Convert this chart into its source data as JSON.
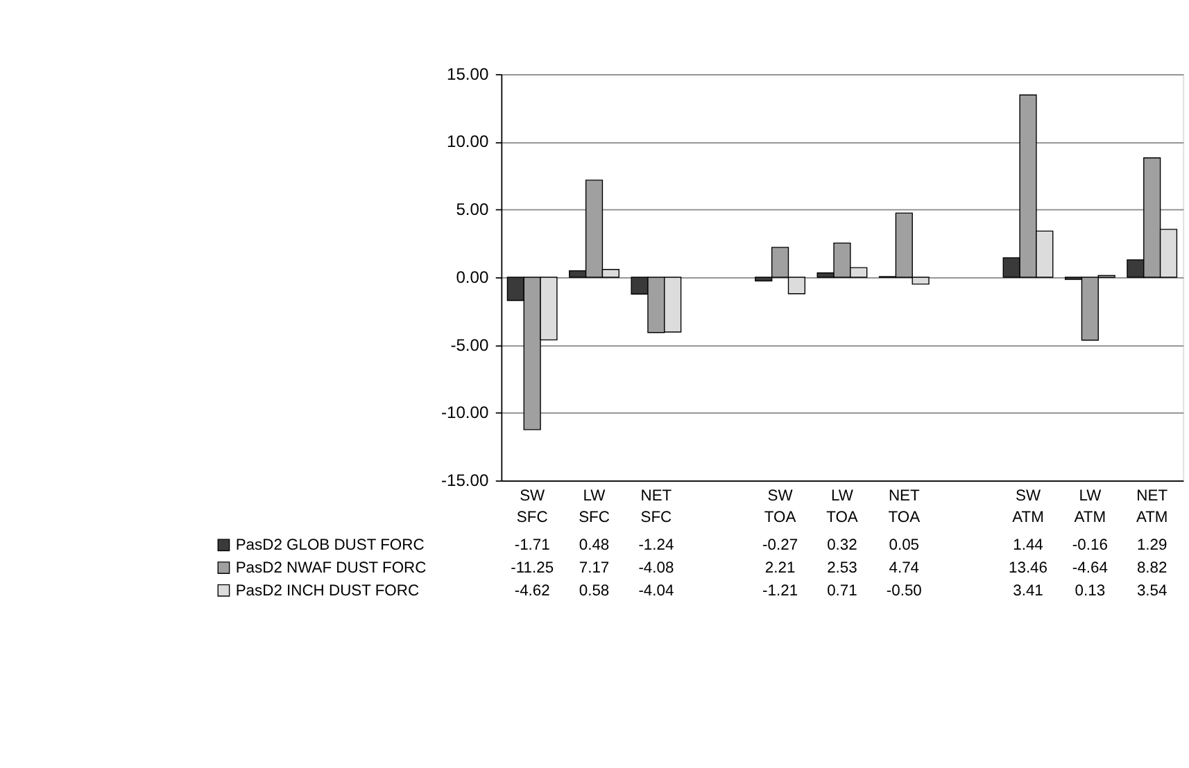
{
  "chart_data": {
    "type": "bar",
    "categories": [
      "SW SFC",
      "LW SFC",
      "NET SFC",
      null,
      "SW TOA",
      "LW TOA",
      "NET TOA",
      null,
      "SW ATM",
      "LW ATM",
      "NET ATM"
    ],
    "series": [
      {
        "name": "PasD2 GLOB DUST FORC",
        "color": "#3a3a3a",
        "values": [
          -1.71,
          0.48,
          -1.24,
          null,
          -0.27,
          0.32,
          0.05,
          null,
          1.44,
          -0.16,
          1.29
        ],
        "value_labels": [
          "-1.71",
          "0.48",
          "-1.24",
          null,
          "-0.27",
          "0.32",
          "0.05",
          null,
          "1.44",
          "-0.16",
          "1.29"
        ]
      },
      {
        "name": "PasD2 NWAF DUST FORC",
        "color": "#a0a0a0",
        "values": [
          -11.25,
          7.17,
          -4.08,
          null,
          2.21,
          2.53,
          4.74,
          null,
          13.46,
          -4.64,
          8.82
        ],
        "value_labels": [
          "-11.25",
          "7.17",
          "-4.08",
          null,
          "2.21",
          "2.53",
          "4.74",
          null,
          "13.46",
          "-4.64",
          "8.82"
        ]
      },
      {
        "name": "PasD2 INCH DUST FORC",
        "color": "#dcdcdc",
        "values": [
          -4.62,
          0.58,
          -4.04,
          null,
          -1.21,
          0.71,
          -0.5,
          null,
          3.41,
          0.13,
          3.54
        ],
        "value_labels": [
          "-4.62",
          "0.58",
          "-4.04",
          null,
          "-1.21",
          "0.71",
          "-0.50",
          null,
          "3.41",
          "0.13",
          "3.54"
        ]
      }
    ],
    "ylim": [
      -15,
      15
    ],
    "yticks": [
      {
        "value": -15,
        "label": "-15.00"
      },
      {
        "value": -10,
        "label": "-10.00"
      },
      {
        "value": -5,
        "label": "-5.00"
      },
      {
        "value": 0,
        "label": "0.00"
      },
      {
        "value": 5,
        "label": "5.00"
      },
      {
        "value": 10,
        "label": "10.00"
      },
      {
        "value": 15,
        "label": "15.00"
      }
    ],
    "grid": "y",
    "legend": "bottom"
  }
}
